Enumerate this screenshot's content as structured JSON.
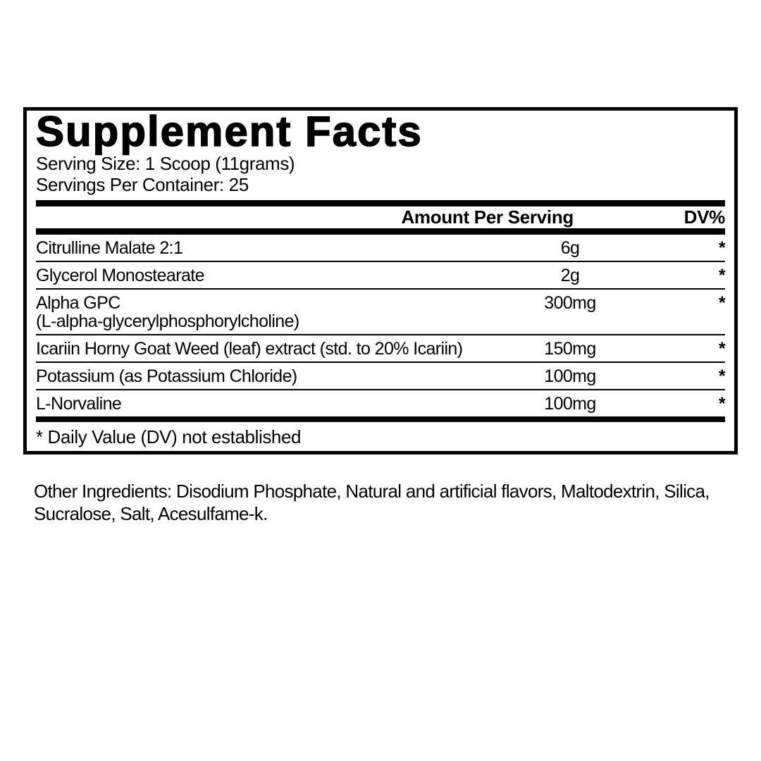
{
  "panel": {
    "title": "Supplement Facts",
    "serving_size": "Serving Size: 1 Scoop (11grams)",
    "servings_per_container": "Servings Per Container: 25",
    "columns": {
      "amount": "Amount Per Serving",
      "dv": "DV%"
    },
    "rows": [
      {
        "name": "Citrulline Malate 2:1",
        "sub": "",
        "amount": "6g",
        "dv": "*"
      },
      {
        "name": "Glycerol Monostearate",
        "sub": "",
        "amount": "2g",
        "dv": "*"
      },
      {
        "name": "Alpha GPC",
        "sub": "(L-alpha-glycerylphosphorylcholine)",
        "amount": "300mg",
        "dv": "*"
      },
      {
        "name": "Icariin Horny Goat Weed (leaf) extract (std. to 20% Icariin)",
        "sub": "",
        "amount": "150mg",
        "dv": "*"
      },
      {
        "name": "Potassium (as Potassium Chloride)",
        "sub": "",
        "amount": "100mg",
        "dv": "*"
      },
      {
        "name": "L-Norvaline",
        "sub": "",
        "amount": "100mg",
        "dv": "*"
      }
    ],
    "footnote": "* Daily Value (DV) not established"
  },
  "other_ingredients": "Other Ingredients: Disodium Phosphate, Natural and artificial flavors, Maltodextrin, Silica, Sucralose, Salt, Acesulfame-k.",
  "colors": {
    "ink": "#000000",
    "paper": "#ffffff"
  }
}
